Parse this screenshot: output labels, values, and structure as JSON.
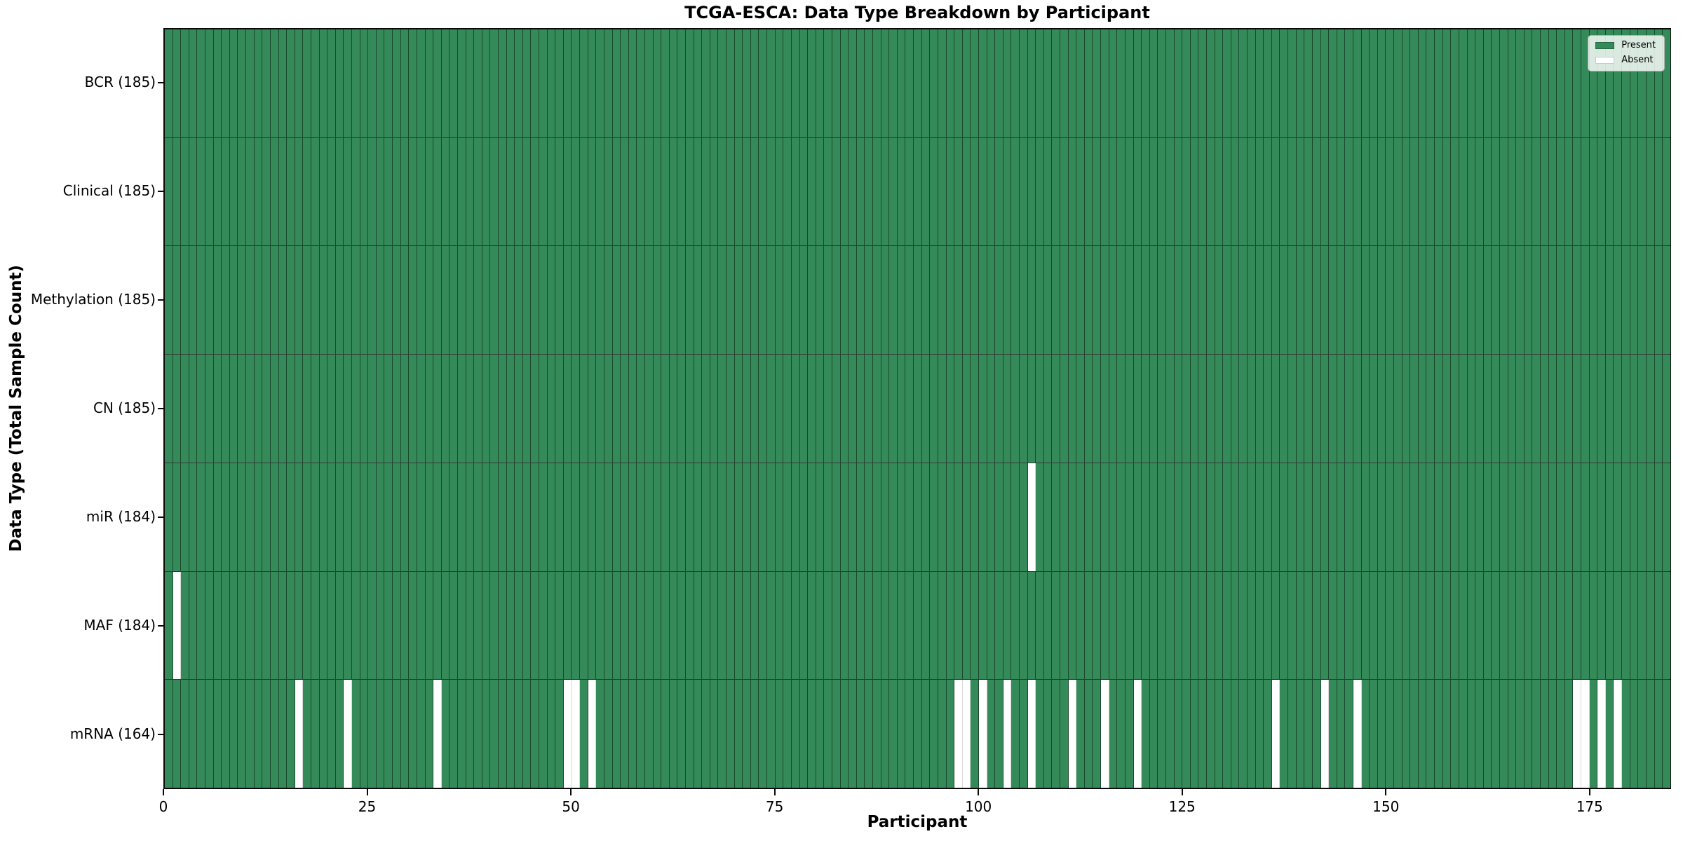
{
  "chart_data": {
    "type": "heatmap",
    "title": "TCGA-ESCA: Data Type Breakdown by Participant",
    "xlabel": "Participant",
    "ylabel": "Data Type (Total Sample Count)",
    "n_participants": 185,
    "x_range": [
      0,
      185
    ],
    "x_ticks": [
      0,
      25,
      50,
      75,
      100,
      125,
      150,
      175
    ],
    "cell_states": [
      "present",
      "absent"
    ],
    "grid": true,
    "rows": [
      {
        "label": "BCR (185)",
        "data_type": "BCR",
        "total_sample_count": 185,
        "absent_participants": []
      },
      {
        "label": "Clinical (185)",
        "data_type": "Clinical",
        "total_sample_count": 185,
        "absent_participants": []
      },
      {
        "label": "Methylation (185)",
        "data_type": "Methylation",
        "total_sample_count": 185,
        "absent_participants": []
      },
      {
        "label": "CN (185)",
        "data_type": "CN",
        "total_sample_count": 185,
        "absent_participants": []
      },
      {
        "label": "miR (184)",
        "data_type": "miR",
        "total_sample_count": 184,
        "absent_participants": [
          106
        ]
      },
      {
        "label": "MAF (184)",
        "data_type": "MAF",
        "total_sample_count": 184,
        "absent_participants": [
          1
        ]
      },
      {
        "label": "mRNA (164)",
        "data_type": "mRNA",
        "total_sample_count": 164,
        "absent_participants": [
          16,
          22,
          33,
          49,
          50,
          52,
          97,
          98,
          100,
          103,
          106,
          111,
          115,
          119,
          136,
          142,
          146,
          173,
          174,
          176,
          178
        ]
      }
    ],
    "legend": {
      "position": "upper-right",
      "entries": [
        {
          "label": "Present",
          "color": "#348a58"
        },
        {
          "label": "Absent",
          "color": "#ffffff"
        }
      ]
    },
    "colors": {
      "present": "#348a58",
      "absent": "#ffffff",
      "gridline": "rgba(0,0,0,0.48)",
      "row_separator": "rgba(0,0,0,0.78)",
      "axes_border": "#0a0a0a"
    }
  }
}
